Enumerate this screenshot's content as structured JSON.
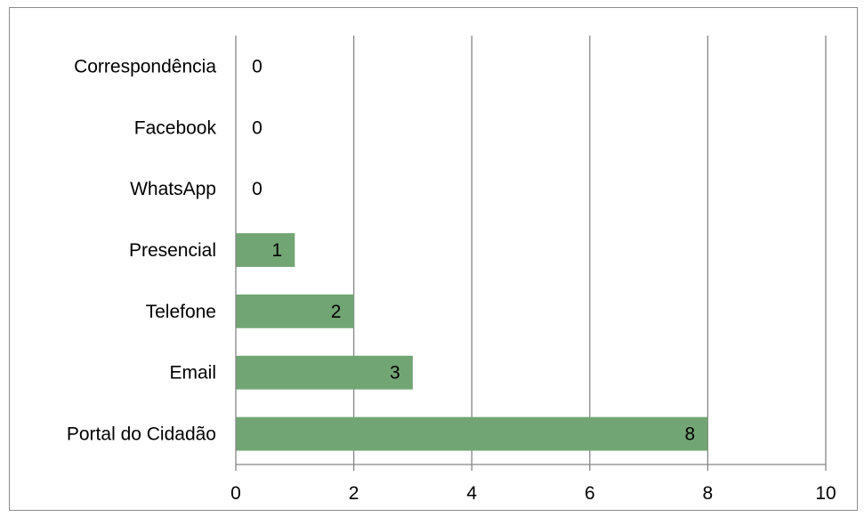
{
  "chart_data": {
    "type": "bar",
    "orientation": "horizontal",
    "categories": [
      "Correspondência",
      "Facebook",
      "WhatsApp",
      "Presencial",
      "Telefone",
      "Email",
      "Portal do Cidadão"
    ],
    "values": [
      0,
      0,
      0,
      1,
      2,
      3,
      8
    ],
    "xlim": [
      0,
      10
    ],
    "xticks": [
      "0",
      "2",
      "4",
      "6",
      "8",
      "10"
    ],
    "grid": "vertical",
    "legend": "none",
    "bar_color": "#72A574",
    "grid_color": "#868686"
  }
}
